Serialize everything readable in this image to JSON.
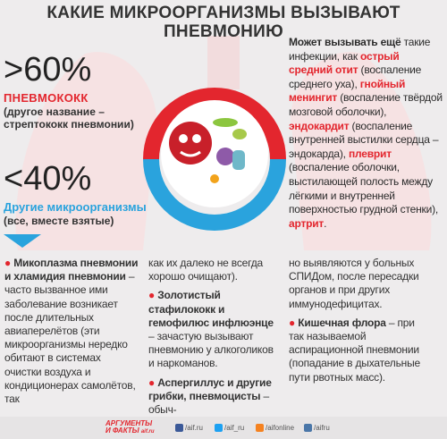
{
  "title": "КАКИЕ МИКРООРГАНИЗМЫ ВЫЗЫВАЮТ ПНЕВМОНИЮ",
  "stats": [
    {
      "value_text": ">60%",
      "name": "ПНЕВМОКОКК",
      "note": "(другое название – стрептококк пневмонии)"
    },
    {
      "value_text": "<40%",
      "name": "Другие микроорганизмы",
      "note": "(все, вместе взятые)"
    }
  ],
  "side_note": {
    "heading": "Может вызывать ещё",
    "parts": [
      "такие инфекции, как ",
      "острый средний отит",
      " (воспаление среднего уха), ",
      "гнойный менингит",
      " (воспаление твёрдой мозговой оболочки), ",
      "эндокардит",
      " (воспаление внутренней выстилки сердца – эндокарда), ",
      "плеврит",
      " (воспаление оболочки, выстилающей полость между лёгкими и внутренней поверхностью грудной стенки), ",
      "артрит",
      "."
    ]
  },
  "columns": [
    [
      {
        "heading": "Микоплазма пневмонии и хламидия пневмонии",
        "text": " – часто вызванное ими заболевание возникает после длительных авиаперелётов (эти микроорганизмы нередко обитают в системах очистки воздуха и кондиционерах самолётов, так"
      }
    ],
    [
      {
        "text": "как их далеко не всегда хорошо очищают)."
      },
      {
        "heading": "Золотистый стафилококк и гемофилюс инфлюэнце",
        "text": " – зачастую вызывают пневмонию у алкоголиков и наркоманов."
      },
      {
        "heading": "Аспергиллус и другие грибки, пневмоцисты",
        "text": " – обыч-"
      }
    ],
    [
      {
        "text": "но выявляются у больных СПИДом, после пересадки органов и при других иммунодефицитах."
      },
      {
        "heading": "Кишечная флора",
        "text": " – при так называемой аспирационной пневмонии (попадание в дыхательные пути рвотных масс)."
      }
    ]
  ],
  "footer": {
    "logo_line1": "АРГУМЕНТЫ",
    "logo_line2": "И ФАКТЫ",
    "logo_site": "aif.ru",
    "social": [
      "/aif.ru",
      "/aif_ru",
      "/aifonline",
      "/aifru"
    ]
  }
}
